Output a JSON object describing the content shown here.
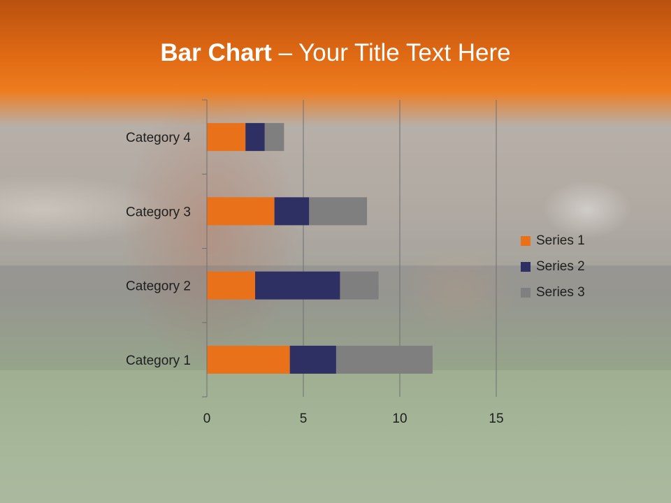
{
  "slide": {
    "title_bold": "Bar Chart",
    "title_rest": " – Your Title Text Here",
    "accent_color": "#E8711A"
  },
  "chart_data": {
    "type": "bar",
    "orientation": "horizontal",
    "stacked": true,
    "categories": [
      "Category 1",
      "Category 2",
      "Category 3",
      "Category 4"
    ],
    "series": [
      {
        "name": "Series 1",
        "color": "#E8711A",
        "values": [
          4.3,
          2.5,
          3.5,
          2.0
        ]
      },
      {
        "name": "Series 2",
        "color": "#2E2F63",
        "values": [
          2.4,
          4.4,
          1.8,
          1.0
        ]
      },
      {
        "name": "Series 3",
        "color": "#7F7F7F",
        "values": [
          5.0,
          2.0,
          3.0,
          1.0
        ]
      }
    ],
    "xlim": [
      0,
      15
    ],
    "x_ticks": [
      "0",
      "5",
      "10",
      "15"
    ],
    "grid": true,
    "legend_position": "right"
  }
}
